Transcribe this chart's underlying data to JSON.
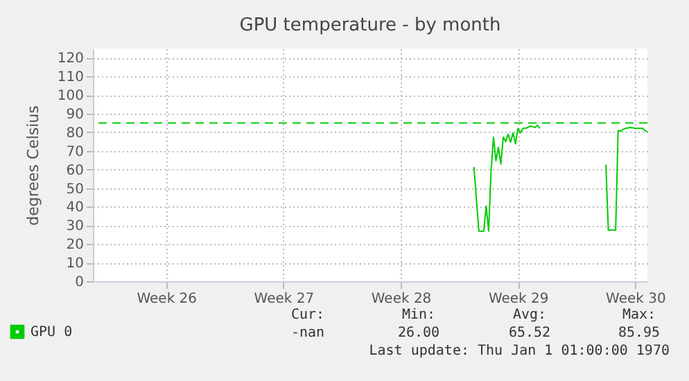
{
  "chart_data": {
    "type": "line",
    "title": "GPU temperature - by month",
    "ylabel": "degrees Celsius",
    "categories": [
      null,
      null,
      null,
      null,
      null,
      null,
      null,
      null,
      null,
      null,
      null,
      null,
      null,
      null,
      null,
      null,
      null,
      null,
      null,
      null,
      null,
      null,
      null,
      null,
      null,
      null,
      null,
      null,
      null,
      null,
      "Week 26",
      null,
      null,
      null,
      null,
      null,
      null,
      null,
      null,
      null,
      null,
      null,
      null,
      null,
      null,
      null,
      null,
      null,
      null,
      null,
      null,
      null,
      null,
      null,
      null,
      null,
      null,
      null,
      null,
      null,
      null,
      null,
      null,
      null,
      null,
      null,
      null,
      null,
      null,
      null,
      null,
      null,
      null,
      null,
      null,
      null,
      null,
      null,
      "Week 27",
      null,
      null,
      null,
      null,
      null,
      null,
      null,
      null,
      null,
      null,
      null,
      null,
      null,
      null,
      null,
      null,
      null,
      null,
      null,
      null,
      null,
      null,
      null,
      null,
      null,
      null,
      null,
      null,
      null,
      null,
      null,
      null,
      null,
      null,
      null,
      null,
      null,
      null,
      null,
      null,
      null,
      null,
      null,
      null,
      null,
      null,
      null,
      "Week 28",
      null,
      null,
      null,
      null,
      null,
      null,
      null,
      null,
      null,
      null,
      null,
      null,
      null,
      null,
      null,
      null,
      null,
      null,
      null,
      null,
      null,
      null,
      null,
      null,
      null,
      null,
      null,
      null,
      null,
      null,
      null,
      null,
      null,
      null,
      null,
      null,
      null,
      null,
      null,
      null,
      null,
      null,
      null,
      null,
      null,
      null,
      null,
      "Week 29",
      null,
      null,
      null,
      null,
      null,
      null,
      null,
      null,
      null,
      null,
      null,
      null,
      null,
      null,
      null,
      null,
      null,
      null,
      null,
      null,
      null,
      null,
      null,
      null,
      null,
      null,
      null,
      null,
      null,
      null,
      null,
      null,
      null,
      null,
      null,
      null,
      null,
      null,
      null,
      null,
      null,
      null,
      null,
      null,
      null,
      null,
      null,
      "Week 30",
      null,
      null,
      null,
      null,
      null
    ],
    "series": [
      {
        "name": "GPU 0",
        "color": "#00cc00",
        "values": [
          null,
          null,
          null,
          null,
          null,
          null,
          null,
          null,
          null,
          null,
          null,
          null,
          null,
          null,
          null,
          null,
          null,
          null,
          null,
          null,
          null,
          null,
          null,
          null,
          null,
          null,
          null,
          null,
          null,
          null,
          null,
          null,
          null,
          null,
          null,
          null,
          null,
          null,
          null,
          null,
          null,
          null,
          null,
          null,
          null,
          null,
          null,
          null,
          null,
          null,
          null,
          null,
          null,
          null,
          null,
          null,
          null,
          null,
          null,
          null,
          null,
          null,
          null,
          null,
          null,
          null,
          null,
          null,
          null,
          null,
          null,
          null,
          null,
          null,
          null,
          null,
          null,
          null,
          null,
          null,
          null,
          null,
          null,
          null,
          null,
          null,
          null,
          null,
          null,
          null,
          null,
          null,
          null,
          null,
          null,
          null,
          null,
          null,
          null,
          null,
          null,
          null,
          null,
          null,
          null,
          null,
          null,
          null,
          null,
          null,
          null,
          null,
          null,
          null,
          null,
          null,
          null,
          null,
          null,
          null,
          null,
          null,
          null,
          null,
          null,
          null,
          null,
          null,
          null,
          null,
          null,
          null,
          null,
          null,
          null,
          null,
          null,
          null,
          null,
          null,
          null,
          null,
          null,
          null,
          null,
          null,
          null,
          null,
          null,
          null,
          null,
          null,
          null,
          null,
          null,
          null,
          61.4,
          44,
          26.9,
          26.9,
          26.9,
          40.4,
          26.9,
          59.5,
          77.4,
          64.7,
          71.9,
          63,
          77.4,
          75,
          79,
          74.7,
          79.7,
          73.8,
          82.1,
          79.7,
          82.1,
          82.1,
          82.6,
          83.3,
          83,
          82.6,
          83.8,
          82.1,
          null,
          null,
          null,
          null,
          null,
          null,
          null,
          null,
          null,
          null,
          null,
          null,
          null,
          null,
          null,
          null,
          null,
          null,
          null,
          null,
          null,
          null,
          null,
          null,
          null,
          null,
          62.6,
          27.4,
          27.4,
          27.4,
          27.4,
          80.9,
          80.5,
          81.5,
          82.1,
          82.3,
          82.6,
          82.4,
          82.1,
          82.1,
          82.1,
          82.1,
          81,
          80.2
        ]
      }
    ],
    "ylim": [
      0,
      125
    ],
    "yticks": [
      0,
      10,
      20,
      30,
      40,
      50,
      60,
      70,
      80,
      90,
      100,
      110,
      120
    ],
    "ref_lines": [
      {
        "axis": "y",
        "value": 85,
        "color": "#00cc00",
        "line_style": "dashed"
      }
    ],
    "grid": true,
    "legend": "bottom",
    "marker": "none",
    "line_style": "solid",
    "annotations": [
      "Cur:",
      "-nan",
      "Min:",
      "26.00",
      "Avg:",
      "65.52",
      "Max:",
      "85.95",
      "Last update: Thu Jan  1 01:00:00 1970"
    ]
  }
}
